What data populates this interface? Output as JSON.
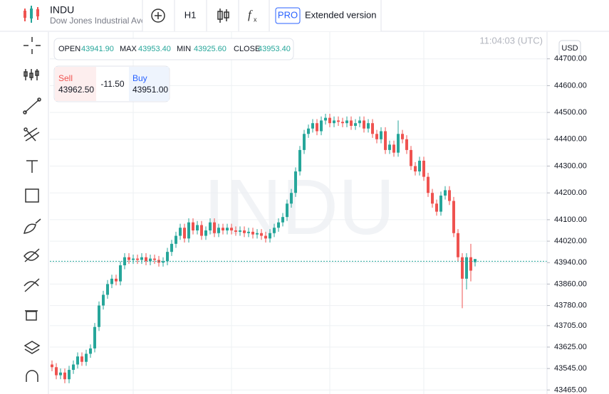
{
  "header": {
    "symbol": "INDU",
    "name": "Dow Jones Industrial Ave",
    "timeframe": "H1",
    "pro": "PRO",
    "extended": "Extended version"
  },
  "ohlc": {
    "open_label": "OPEN",
    "open": "43941.90",
    "max_label": "MAX",
    "max": "43953.40",
    "min_label": "MIN",
    "min": "43925.60",
    "close_label": "CLOSE",
    "close": "43953.40"
  },
  "trade": {
    "sell_label": "Sell",
    "sell": "43962.50",
    "spread": "-11.50",
    "buy_label": "Buy",
    "buy": "43951.00"
  },
  "clock": "11:04:03 (UTC)",
  "currency": "USD",
  "chart_data": {
    "type": "candlestick",
    "watermark": "INDU",
    "up_color": "#26a69a",
    "down_color": "#ef5350",
    "grid": true,
    "price_line": 43945,
    "ylim": [
      43450,
      44800
    ],
    "yticks": [
      {
        "value": 44700,
        "label": "44700.00"
      },
      {
        "value": 44600,
        "label": "44600.00"
      },
      {
        "value": 44500,
        "label": "44500.00"
      },
      {
        "value": 44400,
        "label": "44400.00"
      },
      {
        "value": 44300,
        "label": "44300.00"
      },
      {
        "value": 44200,
        "label": "44200.00"
      },
      {
        "value": 44100,
        "label": "44100.00"
      },
      {
        "value": 44020,
        "label": "44020.00"
      },
      {
        "value": 43940,
        "label": "43940.00"
      },
      {
        "value": 43860,
        "label": "43860.00"
      },
      {
        "value": 43780,
        "label": "43780.00"
      },
      {
        "value": 43705,
        "label": "43705.00"
      },
      {
        "value": 43625,
        "label": "43625.00"
      },
      {
        "value": 43545,
        "label": "43545.00"
      },
      {
        "value": 43465,
        "label": "43465.00"
      }
    ],
    "open": [
      43560,
      43550,
      43520,
      43530,
      43505,
      43540,
      43560,
      43590,
      43570,
      43600,
      43620,
      43700,
      43780,
      43820,
      43860,
      43880,
      43870,
      43930,
      43960,
      43950,
      43955,
      43950,
      43960,
      43945,
      43955,
      43950,
      43940,
      43945,
      43980,
      44010,
      44040,
      44070,
      44030,
      44090,
      44060,
      44080,
      44040,
      44060,
      44090,
      44050,
      44070,
      44060,
      44070,
      44060,
      44055,
      44060,
      44050,
      44055,
      44045,
      44050,
      44040,
      44030,
      44050,
      44070,
      44090,
      44110,
      44160,
      44200,
      44280,
      44360,
      44420,
      44440,
      44460,
      44430,
      44470,
      44480,
      44460,
      44470,
      44465,
      44460,
      44470,
      44450,
      44460,
      44470,
      44440,
      44460,
      44420,
      44400,
      44430,
      44360,
      44380,
      44350,
      44420,
      44400,
      44360,
      44300,
      44280,
      44320,
      44260,
      44200,
      44160,
      44130,
      44190,
      44210,
      44170,
      44050,
      43960,
      43880,
      43960,
      43941.9
    ],
    "high": [
      43575,
      43565,
      43545,
      43545,
      43555,
      43575,
      43605,
      43605,
      43615,
      43635,
      43715,
      43795,
      43835,
      43875,
      43895,
      43895,
      43945,
      43975,
      43975,
      43970,
      43970,
      43975,
      43975,
      43970,
      43970,
      43965,
      43960,
      43995,
      44025,
      44055,
      44085,
      44085,
      44105,
      44105,
      44095,
      44095,
      44075,
      44105,
      44105,
      44085,
      44085,
      44085,
      44085,
      44075,
      44075,
      44075,
      44070,
      44070,
      44065,
      44065,
      44055,
      44065,
      44085,
      44105,
      44125,
      44175,
      44215,
      44295,
      44375,
      44435,
      44455,
      44475,
      44475,
      44485,
      44495,
      44495,
      44485,
      44485,
      44480,
      44485,
      44485,
      44475,
      44485,
      44485,
      44475,
      44475,
      44435,
      44445,
      44445,
      44395,
      44395,
      44470,
      44435,
      44415,
      44375,
      44315,
      44335,
      44335,
      44275,
      44215,
      44175,
      44205,
      44225,
      44225,
      44185,
      44065,
      43975,
      43975,
      44010,
      43953.4
    ],
    "low": [
      43535,
      43505,
      43505,
      43490,
      43490,
      43525,
      43545,
      43555,
      43555,
      43585,
      43605,
      43685,
      43765,
      43805,
      43845,
      43855,
      43855,
      43915,
      43935,
      43935,
      43935,
      43935,
      43930,
      43930,
      43935,
      43925,
      43925,
      43930,
      43965,
      43995,
      44025,
      44015,
      44015,
      44045,
      44045,
      44025,
      44025,
      44045,
      44035,
      44035,
      44045,
      44045,
      44045,
      44040,
      44040,
      44035,
      44035,
      44030,
      44030,
      44025,
      44015,
      44015,
      44035,
      44055,
      44075,
      44095,
      44145,
      44185,
      44265,
      44345,
      44405,
      44425,
      44415,
      44415,
      44455,
      44445,
      44445,
      44450,
      44445,
      44445,
      44435,
      44435,
      44445,
      44425,
      44425,
      44405,
      44385,
      44385,
      44345,
      44345,
      44335,
      44335,
      44385,
      44345,
      44285,
      44265,
      44265,
      44245,
      44185,
      44145,
      44115,
      44115,
      44175,
      44155,
      44035,
      43945,
      43770,
      43840,
      43870,
      43925.6
    ],
    "close": [
      43550,
      43520,
      43530,
      43505,
      43540,
      43560,
      43590,
      43570,
      43600,
      43620,
      43700,
      43780,
      43820,
      43860,
      43880,
      43870,
      43930,
      43960,
      43950,
      43955,
      43950,
      43960,
      43945,
      43955,
      43950,
      43940,
      43945,
      43980,
      44010,
      44040,
      44070,
      44030,
      44090,
      44060,
      44080,
      44040,
      44060,
      44090,
      44050,
      44070,
      44060,
      44070,
      44060,
      44055,
      44060,
      44050,
      44055,
      44045,
      44050,
      44040,
      44030,
      44050,
      44070,
      44090,
      44110,
      44160,
      44200,
      44280,
      44360,
      44420,
      44440,
      44460,
      44430,
      44470,
      44480,
      44460,
      44470,
      44465,
      44460,
      44470,
      44450,
      44460,
      44470,
      44440,
      44460,
      44420,
      44400,
      44430,
      44360,
      44380,
      44350,
      44420,
      44400,
      44360,
      44300,
      44280,
      44320,
      44260,
      44200,
      44160,
      44130,
      44190,
      44210,
      44170,
      44050,
      43960,
      43880,
      43960,
      43910,
      43953.4
    ]
  }
}
